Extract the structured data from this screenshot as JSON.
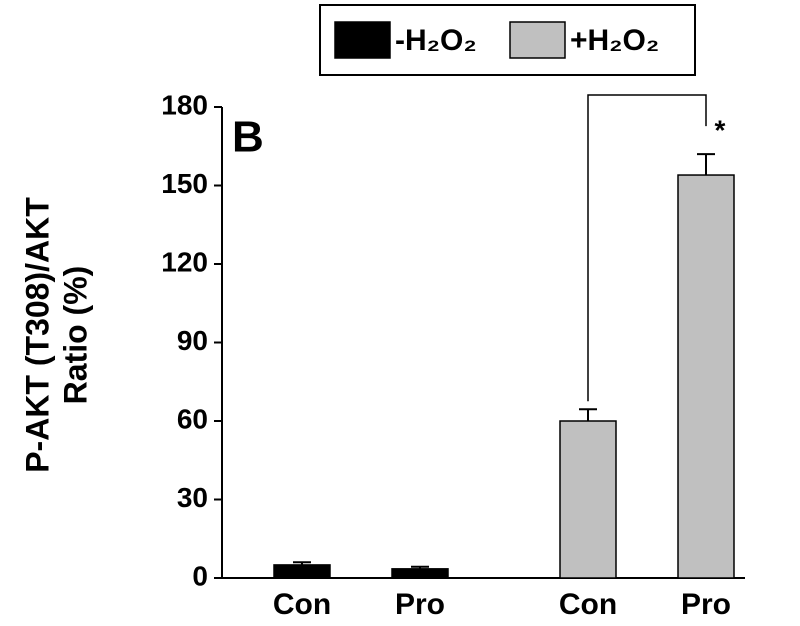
{
  "chart_data": {
    "type": "bar",
    "panel_label": "B",
    "ylabel": [
      "P-AKT (T308)/AKT",
      "Ratio (%)"
    ],
    "categories": [
      "Con",
      "Pro",
      "Con",
      "Pro"
    ],
    "series": [
      {
        "name": "-H₂O₂",
        "color": "#000000",
        "values": [
          5,
          3.5,
          null,
          null
        ],
        "errors": [
          1,
          0.8,
          null,
          null
        ]
      },
      {
        "name": "+H₂O₂",
        "color": "#c0c0c0",
        "values": [
          null,
          null,
          60,
          154
        ],
        "errors": [
          null,
          null,
          4.5,
          8
        ]
      }
    ],
    "annotation": "*",
    "ylim": [
      0,
      180
    ],
    "yticks": [
      0,
      30,
      60,
      90,
      120,
      150,
      180
    ],
    "legend": "top"
  }
}
